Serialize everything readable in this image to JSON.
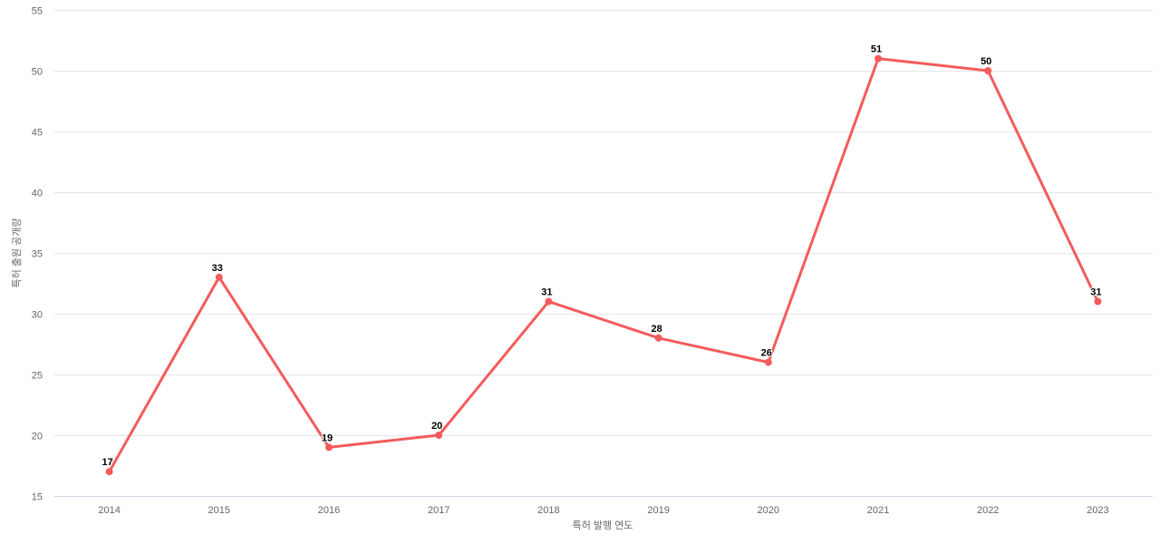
{
  "chart_data": {
    "type": "line",
    "title": "",
    "categories": [
      "2014",
      "2015",
      "2016",
      "2017",
      "2018",
      "2019",
      "2020",
      "2021",
      "2022",
      "2023"
    ],
    "values": [
      17,
      33,
      19,
      20,
      31,
      28,
      26,
      51,
      50,
      31
    ],
    "xlabel": "특허 발행 연도",
    "ylabel": "특허 출원 공개량",
    "ylim": [
      15,
      55
    ],
    "y_tick_step": 5,
    "y_tick_labels": [
      "15",
      "20",
      "25",
      "30",
      "35",
      "40",
      "45",
      "50",
      "55"
    ],
    "data_labels": [
      "17",
      "33",
      "19",
      "20",
      "31",
      "28",
      "26",
      "51",
      "50",
      "31"
    ],
    "grid": "horizontal-only",
    "legend": "none",
    "colors": {
      "series": "#f45b5b",
      "marker": "#f45b5b",
      "gridline": "#e6e6e6",
      "x_axis_line": "#ccd6eb",
      "tick_text": "#666666",
      "axis_title_text": "#666666",
      "data_label_text": "#000000",
      "background": "#ffffff"
    }
  }
}
